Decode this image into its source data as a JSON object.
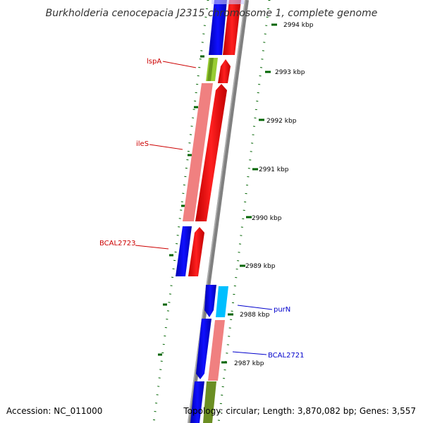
{
  "title": "Burkholderia cenocepacia J2315 chromosome 1, complete genome",
  "footer": {
    "accession": "Accession: NC_011000",
    "topology": "Topology: circular; Length: 3,870,082 bp; Genes: 3,557"
  },
  "ruler": {
    "ticks": [
      "2994 kbp",
      "2993 kbp",
      "2992 kbp",
      "2991 kbp",
      "2990 kbp",
      "2989 kbp",
      "2988 kbp",
      "2987 kbp"
    ]
  },
  "genes": {
    "lspA": "lspA",
    "ileS": "ileS",
    "BCAL2723": "BCAL2723",
    "purN": "purN",
    "BCAL2721": "BCAL2721"
  },
  "colors": {
    "forward_cds": "#ff0000",
    "reverse_cds": "#0000ff",
    "backbone": "#808080",
    "ruler_tick": "#006400",
    "lspA_feature": "#99cc33",
    "ileS_feature": "#f08080",
    "purN_feature": "#00bfff",
    "bcal2721_feature": "#f08080",
    "bottom_feature": "#6b8e23",
    "forward_label": "#cc0000",
    "reverse_label": "#0000cc"
  }
}
